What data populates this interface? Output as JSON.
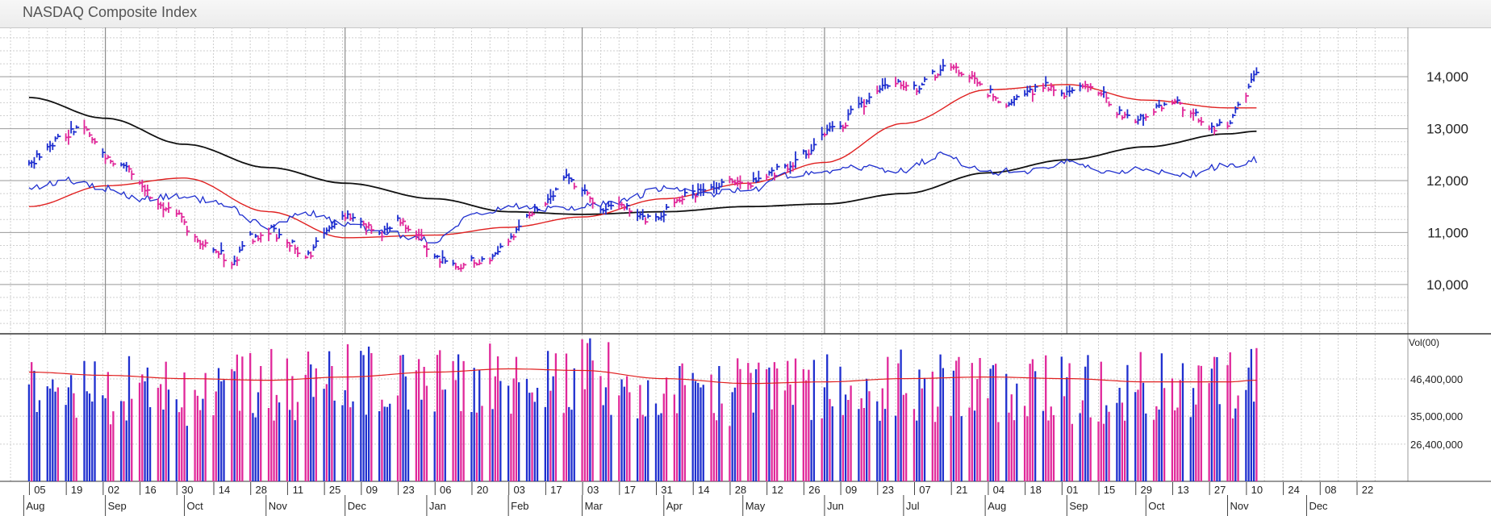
{
  "header": {
    "title": "NASDAQ Composite Index"
  },
  "colors": {
    "up_bar": "#1f2fcf",
    "down_bar": "#e0289a",
    "ma50": "#e02020",
    "ma200": "#111111",
    "relative_strength": "#1f2fcf",
    "grid_major": "#999999",
    "grid_minor": "#cfcfcf"
  },
  "chart_data": [
    {
      "type": "line",
      "title": "",
      "description_series": [
        "price (OHLC bars)",
        "50-day moving average",
        "200-day moving average",
        "relative strength line"
      ],
      "y_ticks": [
        "14,000",
        "13,000",
        "12,000",
        "11,000",
        "10,000"
      ],
      "y_tick_values": [
        14000,
        13000,
        12000,
        11000,
        10000
      ],
      "ylim": [
        9050,
        14950
      ],
      "log_scale": false,
      "grid": true,
      "series": [
        {
          "role": "price",
          "x": [
            "2020-08-03",
            "2020-08-10",
            "2020-08-17",
            "2020-08-24",
            "2020-08-31",
            "2020-09-08",
            "2020-09-14",
            "2020-09-21",
            "2020-09-28",
            "2020-10-05",
            "2020-10-12",
            "2020-10-19",
            "2020-10-26",
            "2020-11-02",
            "2020-11-09",
            "2020-11-16",
            "2020-11-23",
            "2020-11-30",
            "2020-12-07",
            "2020-12-14",
            "2020-12-21",
            "2020-12-28",
            "2021-01-04",
            "2021-01-11",
            "2021-01-19",
            "2021-01-25",
            "2021-02-01",
            "2021-02-08",
            "2021-02-16",
            "2021-02-22",
            "2021-03-01",
            "2021-03-08",
            "2021-03-15",
            "2021-03-22",
            "2021-03-29",
            "2021-04-05",
            "2021-04-12",
            "2021-04-19",
            "2021-04-26",
            "2021-05-03",
            "2021-05-10",
            "2021-05-17",
            "2021-05-24",
            "2021-06-01",
            "2021-06-07",
            "2021-06-14",
            "2021-06-21",
            "2021-06-28",
            "2021-07-06",
            "2021-07-12",
            "2021-07-19",
            "2021-07-26",
            "2021-08-02",
            "2021-08-09",
            "2021-08-16",
            "2021-08-23",
            "2021-08-30",
            "2021-09-07",
            "2021-09-13",
            "2021-09-20",
            "2021-09-27",
            "2021-10-04",
            "2021-10-11",
            "2021-10-18",
            "2021-10-25",
            "2021-11-01",
            "2021-11-08",
            "2021-11-12"
          ],
          "close": [
            12300,
            12650,
            12900,
            13050,
            12500,
            12250,
            11950,
            11550,
            11400,
            10900,
            10650,
            10450,
            10900,
            11050,
            10800,
            10550,
            10950,
            11300,
            11200,
            10950,
            11250,
            11000,
            10500,
            10350,
            10450,
            10500,
            10900,
            11350,
            11600,
            12050,
            11800,
            11400,
            11550,
            11300,
            11250,
            11650,
            11750,
            11800,
            12050,
            11950,
            12100,
            12250,
            12500,
            12950,
            13050,
            13450,
            13750,
            13900,
            13750,
            14050,
            14200,
            14050,
            13700,
            13450,
            13650,
            13850,
            13650,
            13850,
            13700,
            13300,
            13150,
            13400,
            13550,
            13300,
            13000,
            13100,
            13700,
            14100
          ]
        },
        {
          "role": "ma50",
          "x": [
            "2020-08-03",
            "2020-09-01",
            "2020-10-01",
            "2020-11-02",
            "2020-12-01",
            "2021-01-04",
            "2021-02-01",
            "2021-03-01",
            "2021-04-01",
            "2021-05-03",
            "2021-06-01",
            "2021-07-01",
            "2021-08-02",
            "2021-09-01",
            "2021-10-01",
            "2021-11-01",
            "2021-11-12"
          ],
          "y": [
            11500,
            11900,
            12050,
            11400,
            10900,
            10950,
            11100,
            11300,
            11650,
            11950,
            12350,
            13100,
            13750,
            13850,
            13550,
            13400,
            13400
          ]
        },
        {
          "role": "ma200",
          "x": [
            "2020-08-03",
            "2020-09-01",
            "2020-10-01",
            "2020-11-02",
            "2020-12-01",
            "2021-01-04",
            "2021-02-01",
            "2021-03-01",
            "2021-04-01",
            "2021-05-03",
            "2021-06-01",
            "2021-07-01",
            "2021-08-02",
            "2021-09-01",
            "2021-10-01",
            "2021-11-01",
            "2021-11-12"
          ],
          "y": [
            13600,
            13200,
            12700,
            12250,
            11950,
            11650,
            11400,
            11350,
            11400,
            11500,
            11550,
            11750,
            12150,
            12400,
            12650,
            12900,
            12950
          ]
        },
        {
          "role": "relative_strength",
          "x": [
            "2020-08-03",
            "2020-08-17",
            "2020-09-01",
            "2020-09-15",
            "2020-10-01",
            "2020-10-15",
            "2020-11-02",
            "2020-11-16",
            "2020-12-01",
            "2020-12-15",
            "2021-01-04",
            "2021-01-19",
            "2021-02-01",
            "2021-02-16",
            "2021-03-01",
            "2021-03-15",
            "2021-04-01",
            "2021-04-15",
            "2021-05-03",
            "2021-05-17",
            "2021-06-01",
            "2021-06-15",
            "2021-07-01",
            "2021-07-15",
            "2021-08-02",
            "2021-08-16",
            "2021-09-01",
            "2021-09-15",
            "2021-10-01",
            "2021-10-15",
            "2021-11-01",
            "2021-11-12"
          ],
          "y": [
            11850,
            12000,
            11850,
            11650,
            11700,
            11550,
            11100,
            11400,
            11150,
            11000,
            10850,
            11350,
            11500,
            11450,
            11500,
            11600,
            11850,
            11750,
            11800,
            12100,
            12200,
            12250,
            12200,
            12500,
            12150,
            12200,
            12350,
            12200,
            12200,
            12100,
            12300,
            12400
          ]
        }
      ]
    },
    {
      "type": "bar",
      "title": "Vol(00)",
      "y_ticks": [
        "46,400,000",
        "35,000,000",
        "26,400,000"
      ],
      "y_tick_values": [
        46400000,
        35000000,
        26400000
      ],
      "ylim": [
        15000000,
        60000000
      ],
      "series": [
        {
          "role": "volume",
          "x": [
            "2020-08-03",
            "2020-09-01",
            "2020-10-01",
            "2020-11-02",
            "2020-12-01",
            "2021-01-04",
            "2021-02-01",
            "2021-03-01",
            "2021-04-01",
            "2021-05-03",
            "2021-06-01",
            "2021-07-01",
            "2021-08-02",
            "2021-09-01",
            "2021-10-01",
            "2021-11-01",
            "2021-11-12"
          ],
          "y": [
            46000000,
            45000000,
            44000000,
            46000000,
            47000000,
            46000000,
            49000000,
            50000000,
            42000000,
            44000000,
            45000000,
            46000000,
            44000000,
            45000000,
            45000000,
            45000000,
            46000000
          ]
        },
        {
          "role": "volume_ma",
          "x": [
            "2020-08-03",
            "2020-09-01",
            "2020-10-01",
            "2020-11-02",
            "2020-12-01",
            "2021-01-04",
            "2021-02-01",
            "2021-03-01",
            "2021-04-01",
            "2021-05-03",
            "2021-06-01",
            "2021-07-01",
            "2021-08-02",
            "2021-09-01",
            "2021-10-01",
            "2021-11-01",
            "2021-11-12"
          ],
          "y": [
            48500000,
            47500000,
            46500000,
            46000000,
            47000000,
            48500000,
            49500000,
            49000000,
            46500000,
            45000000,
            45500000,
            46500000,
            47000000,
            46500000,
            45500000,
            45500000,
            46000000
          ]
        }
      ]
    }
  ],
  "x_axis": {
    "day_labels": [
      {
        "label": "05",
        "date": "2020-08-05"
      },
      {
        "label": "19",
        "date": "2020-08-19"
      },
      {
        "label": "02",
        "date": "2020-09-02"
      },
      {
        "label": "16",
        "date": "2020-09-16"
      },
      {
        "label": "30",
        "date": "2020-09-30"
      },
      {
        "label": "14",
        "date": "2020-10-14"
      },
      {
        "label": "28",
        "date": "2020-10-28"
      },
      {
        "label": "11",
        "date": "2020-11-11"
      },
      {
        "label": "25",
        "date": "2020-11-25"
      },
      {
        "label": "09",
        "date": "2020-12-09"
      },
      {
        "label": "23",
        "date": "2020-12-23"
      },
      {
        "label": "06",
        "date": "2021-01-06"
      },
      {
        "label": "20",
        "date": "2021-01-20"
      },
      {
        "label": "03",
        "date": "2021-02-03"
      },
      {
        "label": "17",
        "date": "2021-02-17"
      },
      {
        "label": "03",
        "date": "2021-03-03"
      },
      {
        "label": "17",
        "date": "2021-03-17"
      },
      {
        "label": "31",
        "date": "2021-03-31"
      },
      {
        "label": "14",
        "date": "2021-04-14"
      },
      {
        "label": "28",
        "date": "2021-04-28"
      },
      {
        "label": "12",
        "date": "2021-05-12"
      },
      {
        "label": "26",
        "date": "2021-05-26"
      },
      {
        "label": "09",
        "date": "2021-06-09"
      },
      {
        "label": "23",
        "date": "2021-06-23"
      },
      {
        "label": "07",
        "date": "2021-07-07"
      },
      {
        "label": "21",
        "date": "2021-07-21"
      },
      {
        "label": "04",
        "date": "2021-08-04"
      },
      {
        "label": "18",
        "date": "2021-08-18"
      },
      {
        "label": "01",
        "date": "2021-09-01"
      },
      {
        "label": "15",
        "date": "2021-09-15"
      },
      {
        "label": "29",
        "date": "2021-09-29"
      },
      {
        "label": "13",
        "date": "2021-10-13"
      },
      {
        "label": "27",
        "date": "2021-10-27"
      },
      {
        "label": "10",
        "date": "2021-11-10"
      },
      {
        "label": "24",
        "date": "2021-11-24"
      },
      {
        "label": "08",
        "date": "2021-12-08"
      },
      {
        "label": "22",
        "date": "2021-12-22"
      }
    ],
    "month_labels": [
      {
        "label": "Aug",
        "date": "2020-08-01"
      },
      {
        "label": "Sep",
        "date": "2020-09-01"
      },
      {
        "label": "Oct",
        "date": "2020-10-01"
      },
      {
        "label": "Nov",
        "date": "2020-11-01"
      },
      {
        "label": "Dec",
        "date": "2020-12-01"
      },
      {
        "label": "Jan",
        "date": "2021-01-01"
      },
      {
        "label": "Feb",
        "date": "2021-02-01"
      },
      {
        "label": "Mar",
        "date": "2021-03-01"
      },
      {
        "label": "Apr",
        "date": "2021-04-01"
      },
      {
        "label": "May",
        "date": "2021-05-01"
      },
      {
        "label": "Jun",
        "date": "2021-06-01"
      },
      {
        "label": "Jul",
        "date": "2021-07-01"
      },
      {
        "label": "Aug",
        "date": "2021-08-01"
      },
      {
        "label": "Sep",
        "date": "2021-09-01"
      },
      {
        "label": "Oct",
        "date": "2021-10-01"
      },
      {
        "label": "Nov",
        "date": "2021-11-01"
      },
      {
        "label": "Dec",
        "date": "2021-12-01"
      }
    ],
    "quarter_dividers": [
      "2020-09-01",
      "2020-12-01",
      "2021-03-01",
      "2021-06-01",
      "2021-09-01"
    ]
  }
}
